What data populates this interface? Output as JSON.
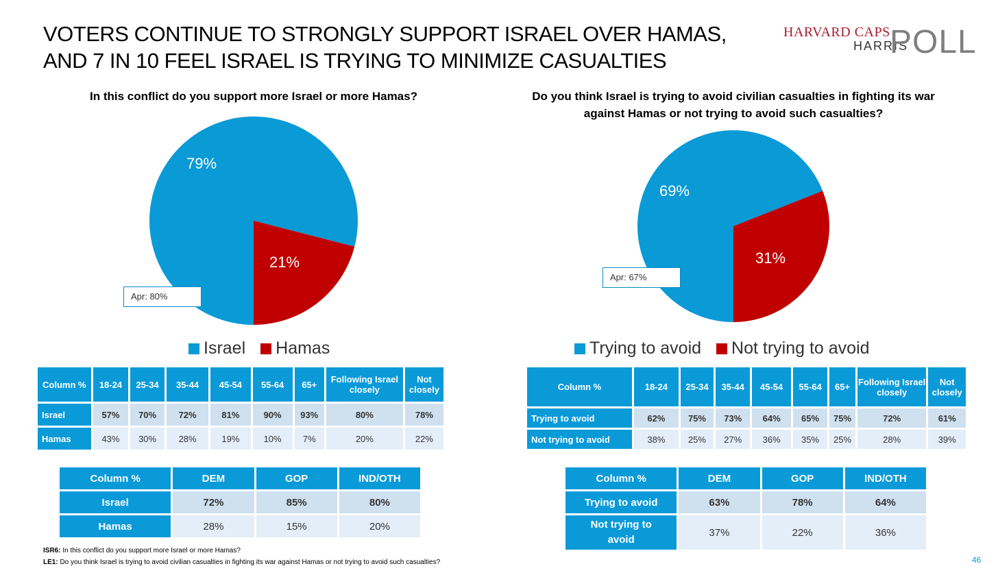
{
  "title": "VOTERS CONTINUE TO STRONGLY SUPPORT ISRAEL OVER HAMAS, AND 7 IN 10 FEEL ISRAEL IS TRYING TO MINIMIZE CASUALTIES",
  "logo": {
    "line1": "HARVARD CAPS",
    "line2": "HARRIS",
    "line3": "POLL"
  },
  "colors": {
    "blue": "#0b9ad8",
    "red": "#c00000",
    "pie_blue": "#0a9ad6",
    "pie_red": "#c00000"
  },
  "chart_data": [
    {
      "type": "pie",
      "title": "In this conflict do you support more Israel or more Hamas?",
      "labels": [
        "Israel",
        "Hamas"
      ],
      "values": [
        79,
        21
      ],
      "value_labels": [
        "79%",
        "21%"
      ],
      "colors": [
        "#0a9ad6",
        "#c00000"
      ],
      "annotation": "Apr: 80%",
      "legend_position": "bottom"
    },
    {
      "type": "pie",
      "title": "Do you think Israel is trying to avoid civilian casualties in fighting its war against Hamas or not trying to avoid such casualties?",
      "labels": [
        "Trying to avoid",
        "Not trying to avoid"
      ],
      "values": [
        69,
        31
      ],
      "value_labels": [
        "69%",
        "31%"
      ],
      "colors": [
        "#0a9ad6",
        "#c00000"
      ],
      "annotation": "Apr: 67%",
      "legend_position": "bottom"
    }
  ],
  "left": {
    "question": "In this conflict do you support more Israel or more Hamas?",
    "age_table": {
      "headers": [
        "Column %",
        "18-24",
        "25-34",
        "35-44",
        "45-54",
        "55-64",
        "65+",
        "Following Israel closely",
        "Not closely"
      ],
      "rows": [
        {
          "label": "Israel",
          "values": [
            "57%",
            "70%",
            "72%",
            "81%",
            "90%",
            "93%",
            "80%",
            "78%"
          ]
        },
        {
          "label": "Hamas",
          "values": [
            "43%",
            "30%",
            "28%",
            "19%",
            "10%",
            "7%",
            "20%",
            "22%"
          ]
        }
      ]
    },
    "party_table": {
      "headers": [
        "Column %",
        "DEM",
        "GOP",
        "IND/OTH"
      ],
      "rows": [
        {
          "label": "Israel",
          "values": [
            "72%",
            "85%",
            "80%"
          ]
        },
        {
          "label": "Hamas",
          "values": [
            "28%",
            "15%",
            "20%"
          ]
        }
      ]
    }
  },
  "right": {
    "question": "Do you think Israel is trying to avoid civilian casualties in fighting its war against Hamas or not trying to avoid such casualties?",
    "age_table": {
      "headers": [
        "Column %",
        "18-24",
        "25-34",
        "35-44",
        "45-54",
        "55-64",
        "65+",
        "Following Israel closely",
        "Not closely"
      ],
      "rows": [
        {
          "label": "Trying to avoid",
          "values": [
            "62%",
            "75%",
            "73%",
            "64%",
            "65%",
            "75%",
            "72%",
            "61%"
          ]
        },
        {
          "label": "Not trying to avoid",
          "values": [
            "38%",
            "25%",
            "27%",
            "36%",
            "35%",
            "25%",
            "28%",
            "39%"
          ]
        }
      ]
    },
    "party_table": {
      "headers": [
        "Column %",
        "DEM",
        "GOP",
        "IND/OTH"
      ],
      "rows": [
        {
          "label": "Trying to avoid",
          "values": [
            "63%",
            "78%",
            "64%"
          ]
        },
        {
          "label": "Not trying to avoid",
          "values": [
            "37%",
            "22%",
            "36%"
          ]
        }
      ]
    }
  },
  "footnotes": [
    {
      "code": "ISR6:",
      "text": " In this conflict do you support more Israel or more Hamas?"
    },
    {
      "code": "LE1:",
      "text": " Do you think Israel is trying to avoid civilian casualties in fighting its war against Hamas or not trying to avoid such casualties?"
    }
  ],
  "page_number": "46"
}
